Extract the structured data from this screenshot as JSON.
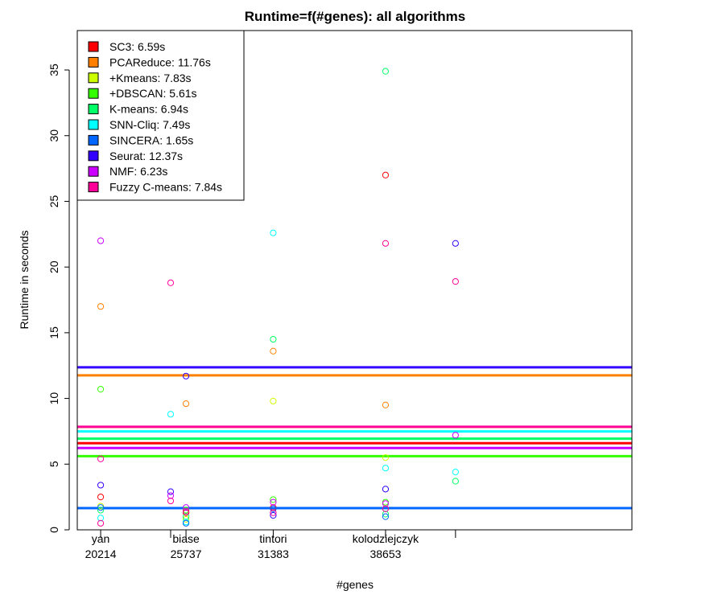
{
  "chart_data": {
    "type": "scatter",
    "title": "Runtime=f(#genes): all algorithms",
    "xlabel": "#genes",
    "ylabel": "Runtime in seconds",
    "ylim": [
      0,
      38
    ],
    "yticks": [
      0,
      5,
      10,
      15,
      20,
      25,
      30,
      35
    ],
    "x_ticks": [
      {
        "name": "yan",
        "genes": "20214"
      },
      {
        "name": "biase",
        "genes": "25737"
      },
      {
        "name": "tintori",
        "genes": "31383"
      },
      {
        "name": "kolodziejczyk",
        "genes": "38653"
      }
    ],
    "extra_x_ticks": [
      20214,
      38653
    ],
    "grid": false,
    "legend_position": "top-left",
    "xlim": [
      18700,
      54600
    ],
    "series": [
      {
        "name": "SC3",
        "color": "#FF0000",
        "mean": 6.59,
        "points": [
          [
            20214,
            2.5
          ],
          [
            25737,
            1.3
          ],
          [
            31383,
            1.7
          ],
          [
            38653,
            27.0
          ]
        ]
      },
      {
        "name": "PCAReduce",
        "color": "#FF8000",
        "mean": 11.76,
        "points": [
          [
            20214,
            17.0
          ],
          [
            25737,
            9.6
          ],
          [
            31383,
            13.6
          ],
          [
            38653,
            9.5
          ]
        ]
      },
      {
        "name": "+Kmeans",
        "color": "#CCFF00",
        "mean": 7.83,
        "points": [
          [
            20214,
            1.8
          ],
          [
            25737,
            0.8
          ],
          [
            31383,
            9.8
          ],
          [
            38653,
            5.5
          ]
        ]
      },
      {
        "name": "+DBSCAN",
        "color": "#33FF00",
        "mean": 5.61,
        "points": [
          [
            20214,
            10.7
          ],
          [
            25737,
            1.5
          ],
          [
            31383,
            2.3
          ],
          [
            38653,
            2.1
          ]
        ]
      },
      {
        "name": "K-means",
        "color": "#00FF66",
        "mean": 6.94,
        "points": [
          [
            20214,
            1.5
          ],
          [
            25737,
            1.0
          ],
          [
            31383,
            14.5
          ],
          [
            38653,
            34.9
          ],
          [
            38653,
            3.7
          ],
          [
            38653,
            1.2
          ]
        ]
      },
      {
        "name": "SNN-Cliq",
        "color": "#00FFFF",
        "mean": 7.49,
        "points": [
          [
            20214,
            0.9
          ],
          [
            20214,
            8.8
          ],
          [
            25737,
            0.6
          ],
          [
            31383,
            22.6
          ],
          [
            38653,
            4.7
          ],
          [
            38653,
            4.4
          ]
        ]
      },
      {
        "name": "SINCERA",
        "color": "#0066FF",
        "mean": 1.65,
        "points": [
          [
            20214,
            1.7
          ],
          [
            25737,
            0.5
          ],
          [
            31383,
            1.6
          ],
          [
            38653,
            1.0
          ]
        ]
      },
      {
        "name": "Seurat",
        "color": "#3300FF",
        "mean": 12.37,
        "points": [
          [
            20214,
            3.4
          ],
          [
            20214,
            2.9
          ],
          [
            25737,
            11.7
          ],
          [
            31383,
            1.1
          ],
          [
            38653,
            3.1
          ],
          [
            38653,
            21.8
          ]
        ]
      },
      {
        "name": "NMF",
        "color": "#CC00FF",
        "mean": 6.23,
        "points": [
          [
            20214,
            22.0
          ],
          [
            20214,
            2.6
          ],
          [
            25737,
            1.7
          ],
          [
            31383,
            2.1
          ],
          [
            38653,
            2.0
          ],
          [
            38653,
            7.2
          ]
        ]
      },
      {
        "name": "Fuzzy C-means",
        "color": "#FF0099",
        "mean": 7.84,
        "points": [
          [
            20214,
            0.5
          ],
          [
            20214,
            18.8
          ],
          [
            20214,
            5.4
          ],
          [
            20214,
            2.2
          ],
          [
            25737,
            1.4
          ],
          [
            31383,
            1.3
          ],
          [
            38653,
            21.8
          ],
          [
            38653,
            18.9
          ],
          [
            38653,
            1.6
          ]
        ]
      }
    ]
  },
  "legend": {
    "items": [
      {
        "label": "SC3: 6.59s",
        "color": "#FF0000"
      },
      {
        "label": "PCAReduce: 11.76s",
        "color": "#FF8000"
      },
      {
        "label": "+Kmeans: 7.83s",
        "color": "#CCFF00"
      },
      {
        "label": "+DBSCAN: 5.61s",
        "color": "#33FF00"
      },
      {
        "label": "K-means: 6.94s",
        "color": "#00FF66"
      },
      {
        "label": "SNN-Cliq: 7.49s",
        "color": "#00FFFF"
      },
      {
        "label": "SINCERA: 1.65s",
        "color": "#0066FF"
      },
      {
        "label": "Seurat: 12.37s",
        "color": "#3300FF"
      },
      {
        "label": "NMF: 6.23s",
        "color": "#CC00FF"
      },
      {
        "label": "Fuzzy C-means: 7.84s",
        "color": "#FF0099"
      }
    ]
  }
}
